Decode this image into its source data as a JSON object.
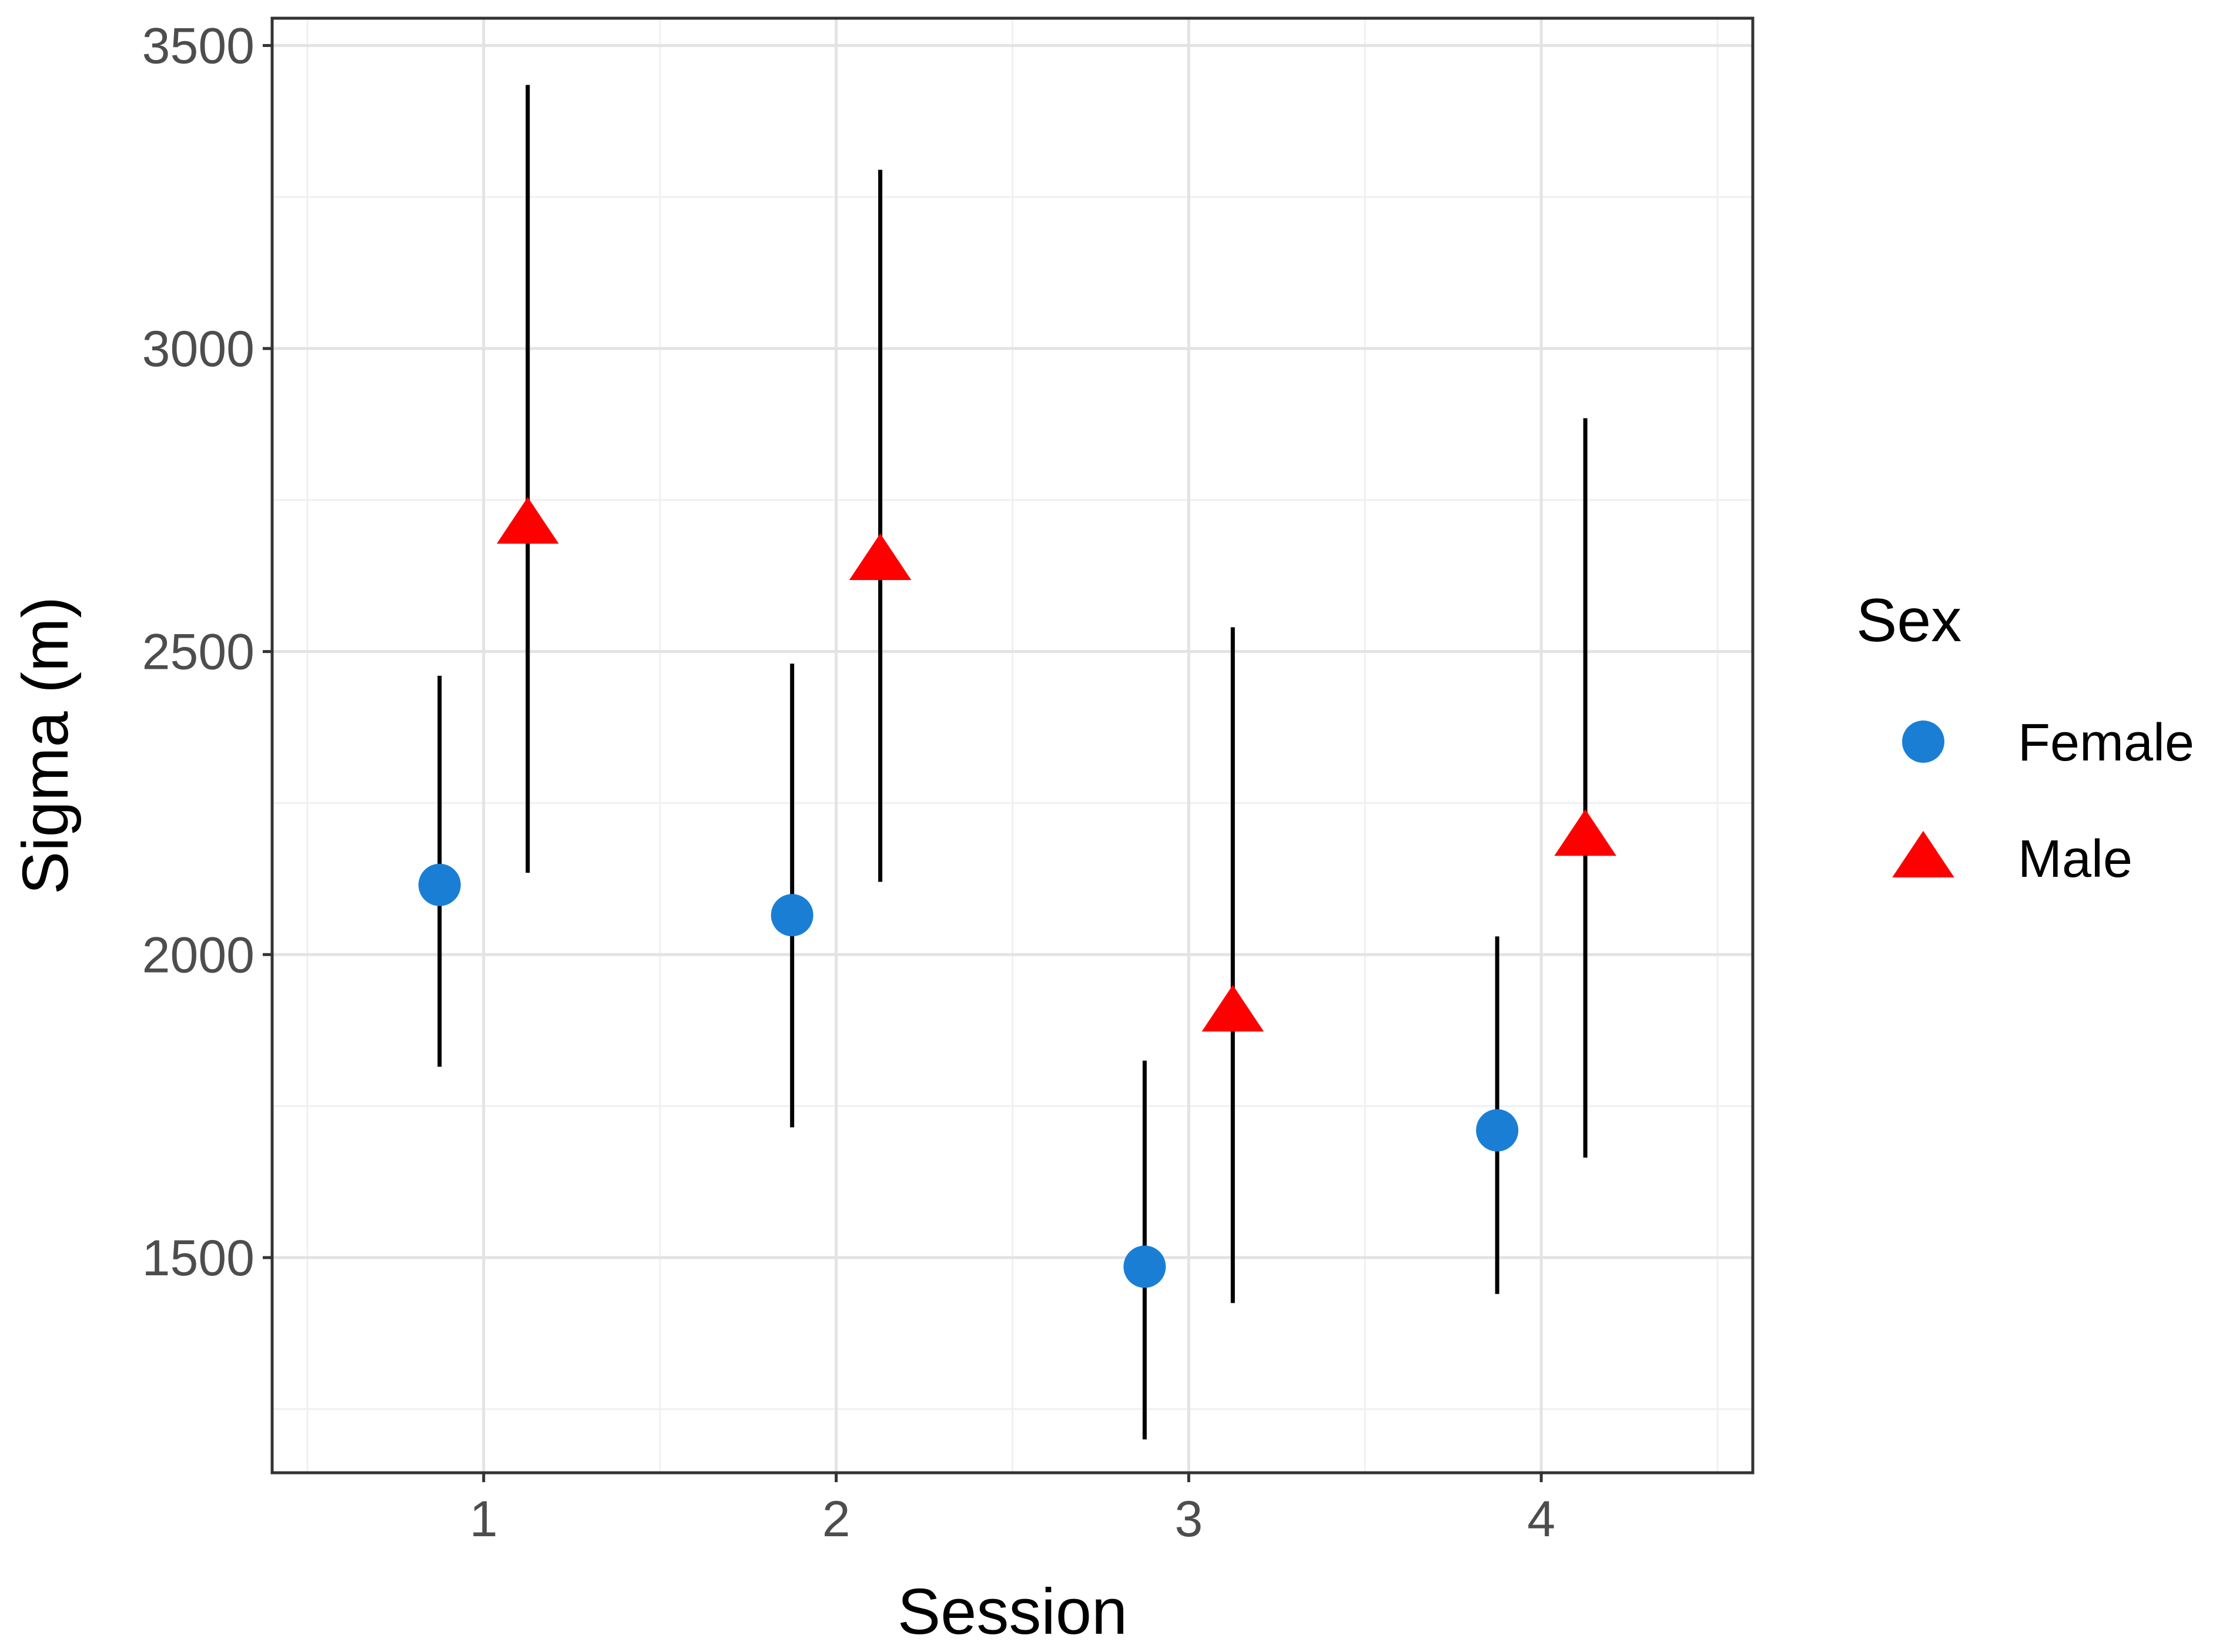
{
  "chart_data": {
    "type": "scatter",
    "title": "",
    "xlabel": "Session",
    "ylabel": "Sigma (m)",
    "xlim": [
      0.4,
      4.6
    ],
    "ylim": [
      1145,
      3545
    ],
    "x_ticks": [
      1,
      2,
      3,
      4
    ],
    "y_ticks": [
      1500,
      2000,
      2500,
      3000,
      3500
    ],
    "grid": true,
    "legend": {
      "title": "Sex",
      "position": "right"
    },
    "series": [
      {
        "name": "Female",
        "marker": "circle",
        "color": "#1a7fd4",
        "points": [
          {
            "x": 0.875,
            "y": 2115,
            "low": 1815,
            "high": 2460
          },
          {
            "x": 1.875,
            "y": 2065,
            "low": 1715,
            "high": 2480
          },
          {
            "x": 2.875,
            "y": 1485,
            "low": 1200,
            "high": 1825
          },
          {
            "x": 3.875,
            "y": 1710,
            "low": 1440,
            "high": 2030
          }
        ]
      },
      {
        "name": "Male",
        "marker": "triangle",
        "color": "#ff0000",
        "points": [
          {
            "x": 1.125,
            "y": 2710,
            "low": 2135,
            "high": 3435
          },
          {
            "x": 2.125,
            "y": 2650,
            "low": 2120,
            "high": 3295
          },
          {
            "x": 3.125,
            "y": 1905,
            "low": 1425,
            "high": 2540
          },
          {
            "x": 4.125,
            "y": 2195,
            "low": 1665,
            "high": 2885
          }
        ]
      }
    ]
  }
}
